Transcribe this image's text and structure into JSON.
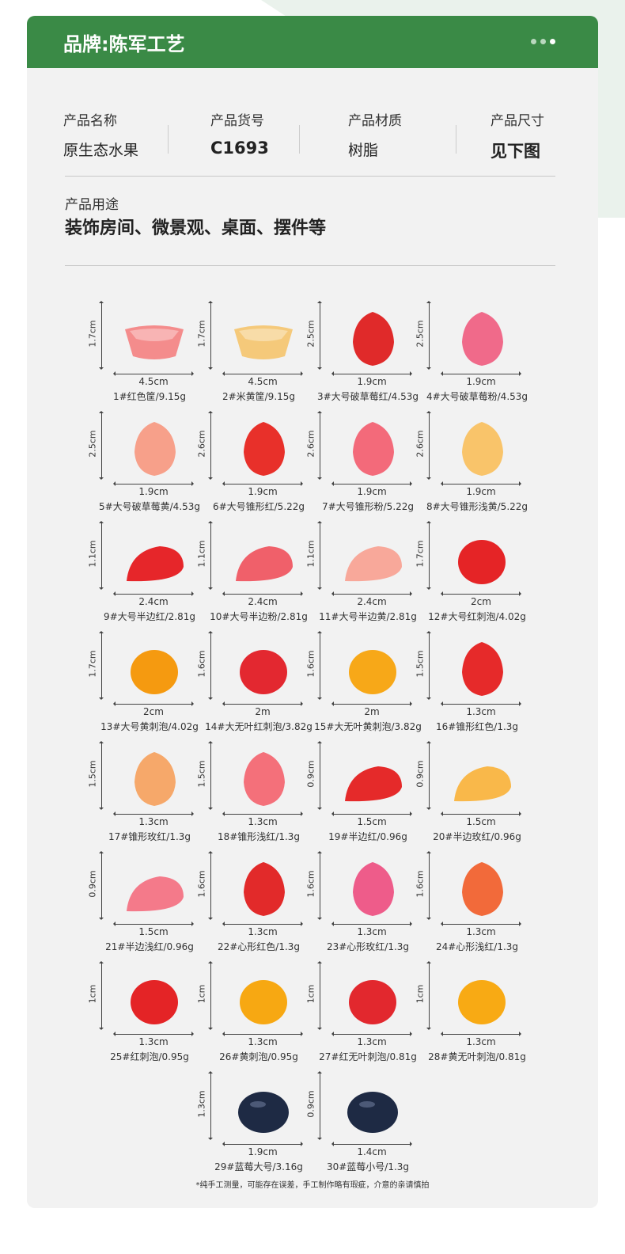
{
  "brand": "品牌:陈军工艺",
  "info": [
    {
      "label": "产品名称",
      "value": "原生态水果"
    },
    {
      "label": "产品货号",
      "value": "C1693"
    },
    {
      "label": "产品材质",
      "value": "树脂"
    },
    {
      "label": "产品尺寸",
      "value": "见下图"
    }
  ],
  "usage": {
    "label": "产品用途",
    "value": "装饰房间、微景观、桌面、摆件等"
  },
  "items": [
    {
      "h": "1.7cm",
      "w": "4.5cm",
      "caption": "1#红色筐/9.15g",
      "kind": "basket",
      "color": "#f48c8c"
    },
    {
      "h": "1.7cm",
      "w": "4.5cm",
      "caption": "2#米黄筐/9.15g",
      "kind": "basket",
      "color": "#f5c97a"
    },
    {
      "h": "2.5cm",
      "w": "1.9cm",
      "caption": "3#大号破草莓红/4.53g",
      "kind": "tall",
      "color": "#e02a2a"
    },
    {
      "h": "2.5cm",
      "w": "1.9cm",
      "caption": "4#大号破草莓粉/4.53g",
      "kind": "tall",
      "color": "#f06a8a"
    },
    {
      "h": "2.5cm",
      "w": "1.9cm",
      "caption": "5#大号破草莓黄/4.53g",
      "kind": "tall",
      "color": "#f7a08a"
    },
    {
      "h": "2.6cm",
      "w": "1.9cm",
      "caption": "6#大号锥形红/5.22g",
      "kind": "tall",
      "color": "#e8302a"
    },
    {
      "h": "2.6cm",
      "w": "1.9cm",
      "caption": "7#大号锥形粉/5.22g",
      "kind": "tall",
      "color": "#f36a7a"
    },
    {
      "h": "2.6cm",
      "w": "1.9cm",
      "caption": "8#大号锥形浅黄/5.22g",
      "kind": "tall",
      "color": "#f9c46a"
    },
    {
      "h": "1.1cm",
      "w": "2.4cm",
      "caption": "9#大号半边红/2.81g",
      "kind": "half",
      "color": "#e6262a"
    },
    {
      "h": "1.1cm",
      "w": "2.4cm",
      "caption": "10#大号半边粉/2.81g",
      "kind": "half",
      "color": "#f0606a"
    },
    {
      "h": "1.1cm",
      "w": "2.4cm",
      "caption": "11#大号半边黄/2.81g",
      "kind": "half",
      "color": "#f8a89a"
    },
    {
      "h": "1.7cm",
      "w": "2cm",
      "caption": "12#大号红刺泡/4.02g",
      "kind": "round",
      "color": "#e52426"
    },
    {
      "h": "1.7cm",
      "w": "2cm",
      "caption": "13#大号黄刺泡/4.02g",
      "kind": "round",
      "color": "#f59a10"
    },
    {
      "h": "1.6cm",
      "w": "2m",
      "caption": "14#大无叶红刺泡/3.82g",
      "kind": "round",
      "color": "#e32830"
    },
    {
      "h": "1.6cm",
      "w": "2m",
      "caption": "15#大无叶黄刺泡/3.82g",
      "kind": "round",
      "color": "#f7a818"
    },
    {
      "h": "1.5cm",
      "w": "1.3cm",
      "caption": "16#锥形红色/1.3g",
      "kind": "tall",
      "color": "#e62a2a"
    },
    {
      "h": "1.5cm",
      "w": "1.3cm",
      "caption": "17#锥形玫红/1.3g",
      "kind": "tall",
      "color": "#f6a86a"
    },
    {
      "h": "1.5cm",
      "w": "1.3cm",
      "caption": "18#锥形浅红/1.3g",
      "kind": "tall",
      "color": "#f4707a"
    },
    {
      "h": "0.9cm",
      "w": "1.5cm",
      "caption": "19#半边红/0.96g",
      "kind": "half",
      "color": "#e52a2a"
    },
    {
      "h": "0.9cm",
      "w": "1.5cm",
      "caption": "20#半边玫红/0.96g",
      "kind": "half",
      "color": "#f9b84a"
    },
    {
      "h": "0.9cm",
      "w": "1.5cm",
      "caption": "21#半边浅红/0.96g",
      "kind": "half",
      "color": "#f47a8a"
    },
    {
      "h": "1.6cm",
      "w": "1.3cm",
      "caption": "22#心形红色/1.3g",
      "kind": "tall",
      "color": "#e22a2a"
    },
    {
      "h": "1.6cm",
      "w": "1.3cm",
      "caption": "23#心形玫红/1.3g",
      "kind": "tall",
      "color": "#ee5c8a"
    },
    {
      "h": "1.6cm",
      "w": "1.3cm",
      "caption": "24#心形浅红/1.3g",
      "kind": "tall",
      "color": "#f26a3a"
    },
    {
      "h": "1cm",
      "w": "1.3cm",
      "caption": "25#红刺泡/0.95g",
      "kind": "round",
      "color": "#e42426"
    },
    {
      "h": "1cm",
      "w": "1.3cm",
      "caption": "26#黄刺泡/0.95g",
      "kind": "round",
      "color": "#f7a812"
    },
    {
      "h": "1cm",
      "w": "1.3cm",
      "caption": "27#红无叶刺泡/0.81g",
      "kind": "round",
      "color": "#e2282e"
    },
    {
      "h": "1cm",
      "w": "1.3cm",
      "caption": "28#黄无叶刺泡/0.81g",
      "kind": "round",
      "color": "#f8aa14"
    },
    {
      "h": "1.3cm",
      "w": "1.9cm",
      "caption": "29#蓝莓大号/3.16g",
      "kind": "berry",
      "color": "#1e2a44"
    },
    {
      "h": "0.9cm",
      "w": "1.4cm",
      "caption": "30#蓝莓小号/1.3g",
      "kind": "berry",
      "color": "#1e2a44"
    }
  ],
  "note": "*纯手工测量，可能存在误差，手工制作略有瑕疵，介意的亲请慎拍"
}
